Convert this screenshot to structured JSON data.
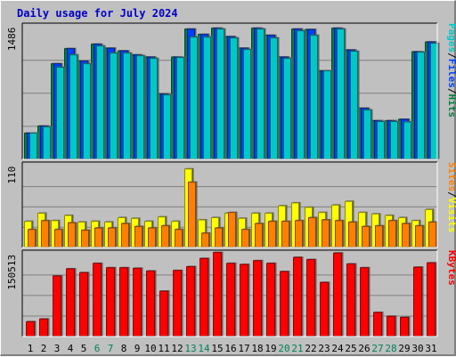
{
  "chart_data": {
    "title": "Daily usage for July 2024",
    "categories": [
      "1",
      "2",
      "3",
      "4",
      "5",
      "6",
      "7",
      "8",
      "9",
      "10",
      "11",
      "12",
      "13",
      "14",
      "15",
      "16",
      "17",
      "18",
      "19",
      "20",
      "21",
      "22",
      "23",
      "24",
      "25",
      "26",
      "27",
      "28",
      "29",
      "30",
      "31"
    ],
    "weekend_days": [
      "6",
      "7",
      "13",
      "14",
      "20",
      "21",
      "27",
      "28"
    ],
    "panels": [
      {
        "type": "bar",
        "ymax": 1486,
        "max_label": "1486",
        "axis_label": [
          "Pages",
          "/",
          "Files",
          "/",
          "Hits"
        ],
        "axis_label_colors": [
          "#00c8c8",
          "#000000",
          "#0040ff",
          "#000000",
          "#008040"
        ],
        "series": [
          {
            "name": "Hits",
            "color": "#008040",
            "values": [
              300,
              380,
              1080,
              1250,
              1110,
              1300,
              1255,
              1225,
              1180,
              1155,
              740,
              1155,
              1470,
              1410,
              1480,
              1385,
              1255,
              1480,
              1400,
              1155,
              1470,
              1465,
              1000,
              1480,
              1235,
              580,
              440,
              440,
              455,
              1215,
              1325
            ]
          },
          {
            "name": "Files",
            "color": "#0040ff",
            "values": [
              300,
              380,
              1080,
              1250,
              1110,
              1300,
              1255,
              1225,
              1180,
              1155,
              740,
              1155,
              1470,
              1410,
              1480,
              1385,
              1255,
              1480,
              1400,
              1155,
              1470,
              1465,
              1000,
              1480,
              1235,
              580,
              440,
              440,
              455,
              1215,
              1325
            ]
          },
          {
            "name": "Pages",
            "color": "#00c8c8",
            "values": [
              300,
              370,
              1040,
              1180,
              1080,
              1280,
              1200,
              1200,
              1170,
              1140,
              730,
              1150,
              1380,
              1380,
              1470,
              1370,
              1240,
              1470,
              1370,
              1140,
              1450,
              1400,
              1000,
              1470,
              1220,
              560,
              430,
              430,
              425,
              1210,
              1310
            ]
          }
        ]
      },
      {
        "type": "bar",
        "ymax": 110,
        "max_label": "110",
        "axis_label": [
          "Sites",
          "/",
          "Visits"
        ],
        "axis_label_colors": [
          "#ff8000",
          "#000000",
          "#ffff00"
        ],
        "series": [
          {
            "name": "Visits",
            "color": "#ffff00",
            "values": [
              36,
              47,
              37,
              44,
              35,
              36,
              35,
              41,
              40,
              36,
              42,
              36,
              107,
              38,
              41,
              47,
              40,
              47,
              47,
              57,
              61,
              55,
              48,
              58,
              63,
              48,
              46,
              44,
              41,
              37,
              52
            ]
          },
          {
            "name": "Sites",
            "color": "#ff8000",
            "values": [
              25,
              37,
              25,
              34,
              24,
              27,
              27,
              33,
              29,
              27,
              30,
              25,
              89,
              20,
              27,
              48,
              25,
              33,
              36,
              36,
              37,
              41,
              38,
              37,
              35,
              29,
              30,
              37,
              33,
              30,
              35
            ]
          }
        ]
      },
      {
        "type": "bar",
        "ymax": 150513,
        "max_label": "150513",
        "axis_label": [
          "KBytes"
        ],
        "axis_label_colors": [
          "#ff0000"
        ],
        "series": [
          {
            "name": "KBytes",
            "color": "#ff0000",
            "values": [
              28000,
              33000,
              112000,
              125000,
              118000,
              135000,
              127000,
              127000,
              126000,
              121000,
              84000,
              122000,
              129000,
              144000,
              155000,
              135000,
              133000,
              140000,
              135000,
              120000,
              146000,
              142000,
              100000,
              154000,
              134000,
              127000,
              45000,
              38000,
              36000,
              128000,
              136000
            ]
          }
        ]
      }
    ]
  }
}
